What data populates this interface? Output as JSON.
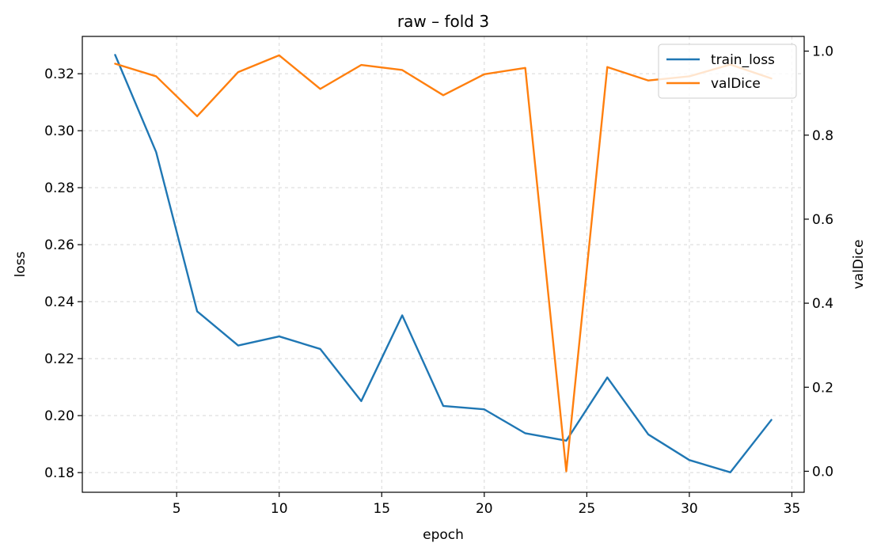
{
  "chart_data": {
    "type": "line",
    "title": "raw – fold 3",
    "xlabel": "epoch",
    "ylabel_left": "loss",
    "ylabel_right": "valDice",
    "x": [
      2,
      4,
      6,
      8,
      10,
      12,
      14,
      16,
      18,
      20,
      22,
      24,
      26,
      28,
      30,
      32,
      34
    ],
    "xlim": [
      0.4,
      35.6
    ],
    "xticks": [
      5,
      10,
      15,
      20,
      25,
      30,
      35
    ],
    "ylim_left": [
      0.1731,
      0.3331
    ],
    "yticks_left": [
      "0.18",
      "0.20",
      "0.22",
      "0.24",
      "0.26",
      "0.28",
      "0.30",
      "0.32"
    ],
    "ylim_right": [
      -0.05,
      1.035
    ],
    "yticks_right": [
      "0.0",
      "0.2",
      "0.4",
      "0.6",
      "0.8",
      "1.0"
    ],
    "grid": true,
    "legend_position": "top-right",
    "series": [
      {
        "name": "train_loss",
        "axis": "left",
        "color": "#1f77b4",
        "values": [
          0.3266,
          0.2925,
          0.2366,
          0.2246,
          0.2278,
          0.2234,
          0.2051,
          0.2352,
          0.2034,
          0.2022,
          0.1938,
          0.1912,
          0.2134,
          0.1934,
          0.1844,
          0.1801,
          0.1985
        ]
      },
      {
        "name": "valDice",
        "axis": "right",
        "color": "#ff7f0e",
        "values": [
          0.97,
          0.94,
          0.845,
          0.95,
          0.99,
          0.91,
          0.967,
          0.955,
          0.895,
          0.945,
          0.96,
          0.0,
          0.962,
          0.93,
          0.94,
          0.968,
          0.935
        ]
      }
    ]
  }
}
